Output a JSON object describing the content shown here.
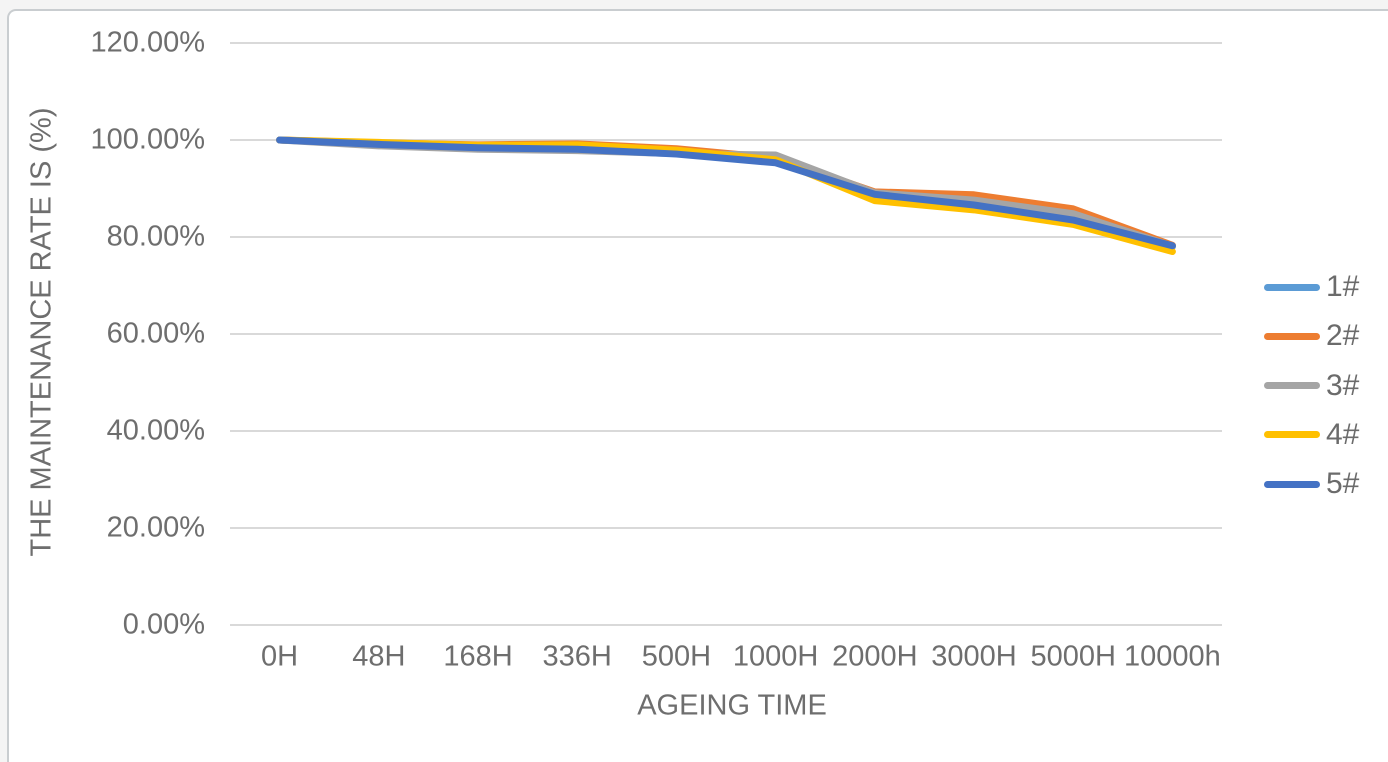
{
  "colors": {
    "grid": "#d9d9d9",
    "axis_text": "#6e6e6e",
    "frame_border": "#c9cdd0",
    "background": "#ffffff"
  },
  "chart_data": {
    "type": "line",
    "title": "",
    "xlabel": "AGEING TIME",
    "ylabel": "THE MAINTENANCE RATE IS (%)",
    "categories": [
      "0H",
      "48H",
      "168H",
      "336H",
      "500H",
      "1000H",
      "2000H",
      "3000H",
      "5000H",
      "10000h"
    ],
    "y_ticks": [
      {
        "value": 0,
        "label": "0.00%"
      },
      {
        "value": 20,
        "label": "20.00%"
      },
      {
        "value": 40,
        "label": "40.00%"
      },
      {
        "value": 60,
        "label": "60.00%"
      },
      {
        "value": 80,
        "label": "80.00%"
      },
      {
        "value": 100,
        "label": "100.00%"
      },
      {
        "value": 120,
        "label": "120.00%"
      }
    ],
    "ylim": [
      0,
      120
    ],
    "grid": "horizontal",
    "legend_position": "right",
    "series": [
      {
        "name": "1#",
        "color": "#5B9BD5",
        "values": [
          100,
          99.2,
          98.6,
          98.3,
          97.3,
          95.6,
          89.0,
          87.0,
          83.8,
          78.0
        ]
      },
      {
        "name": "2#",
        "color": "#ED7D31",
        "values": [
          100,
          99.4,
          99.0,
          99.2,
          98.2,
          96.3,
          89.3,
          88.7,
          85.8,
          78.3
        ]
      },
      {
        "name": "3#",
        "color": "#A5A5A5",
        "values": [
          100,
          98.8,
          98.1,
          97.8,
          97.2,
          96.9,
          89.1,
          87.6,
          84.8,
          78.1
        ]
      },
      {
        "name": "4#",
        "color": "#FFC000",
        "values": [
          100,
          99.5,
          98.9,
          99.0,
          97.9,
          95.9,
          87.5,
          85.6,
          82.6,
          77.0
        ]
      },
      {
        "name": "5#",
        "color": "#4472C4",
        "values": [
          100,
          99.1,
          98.4,
          98.1,
          97.1,
          95.3,
          88.8,
          86.6,
          83.5,
          78.2
        ]
      }
    ]
  }
}
